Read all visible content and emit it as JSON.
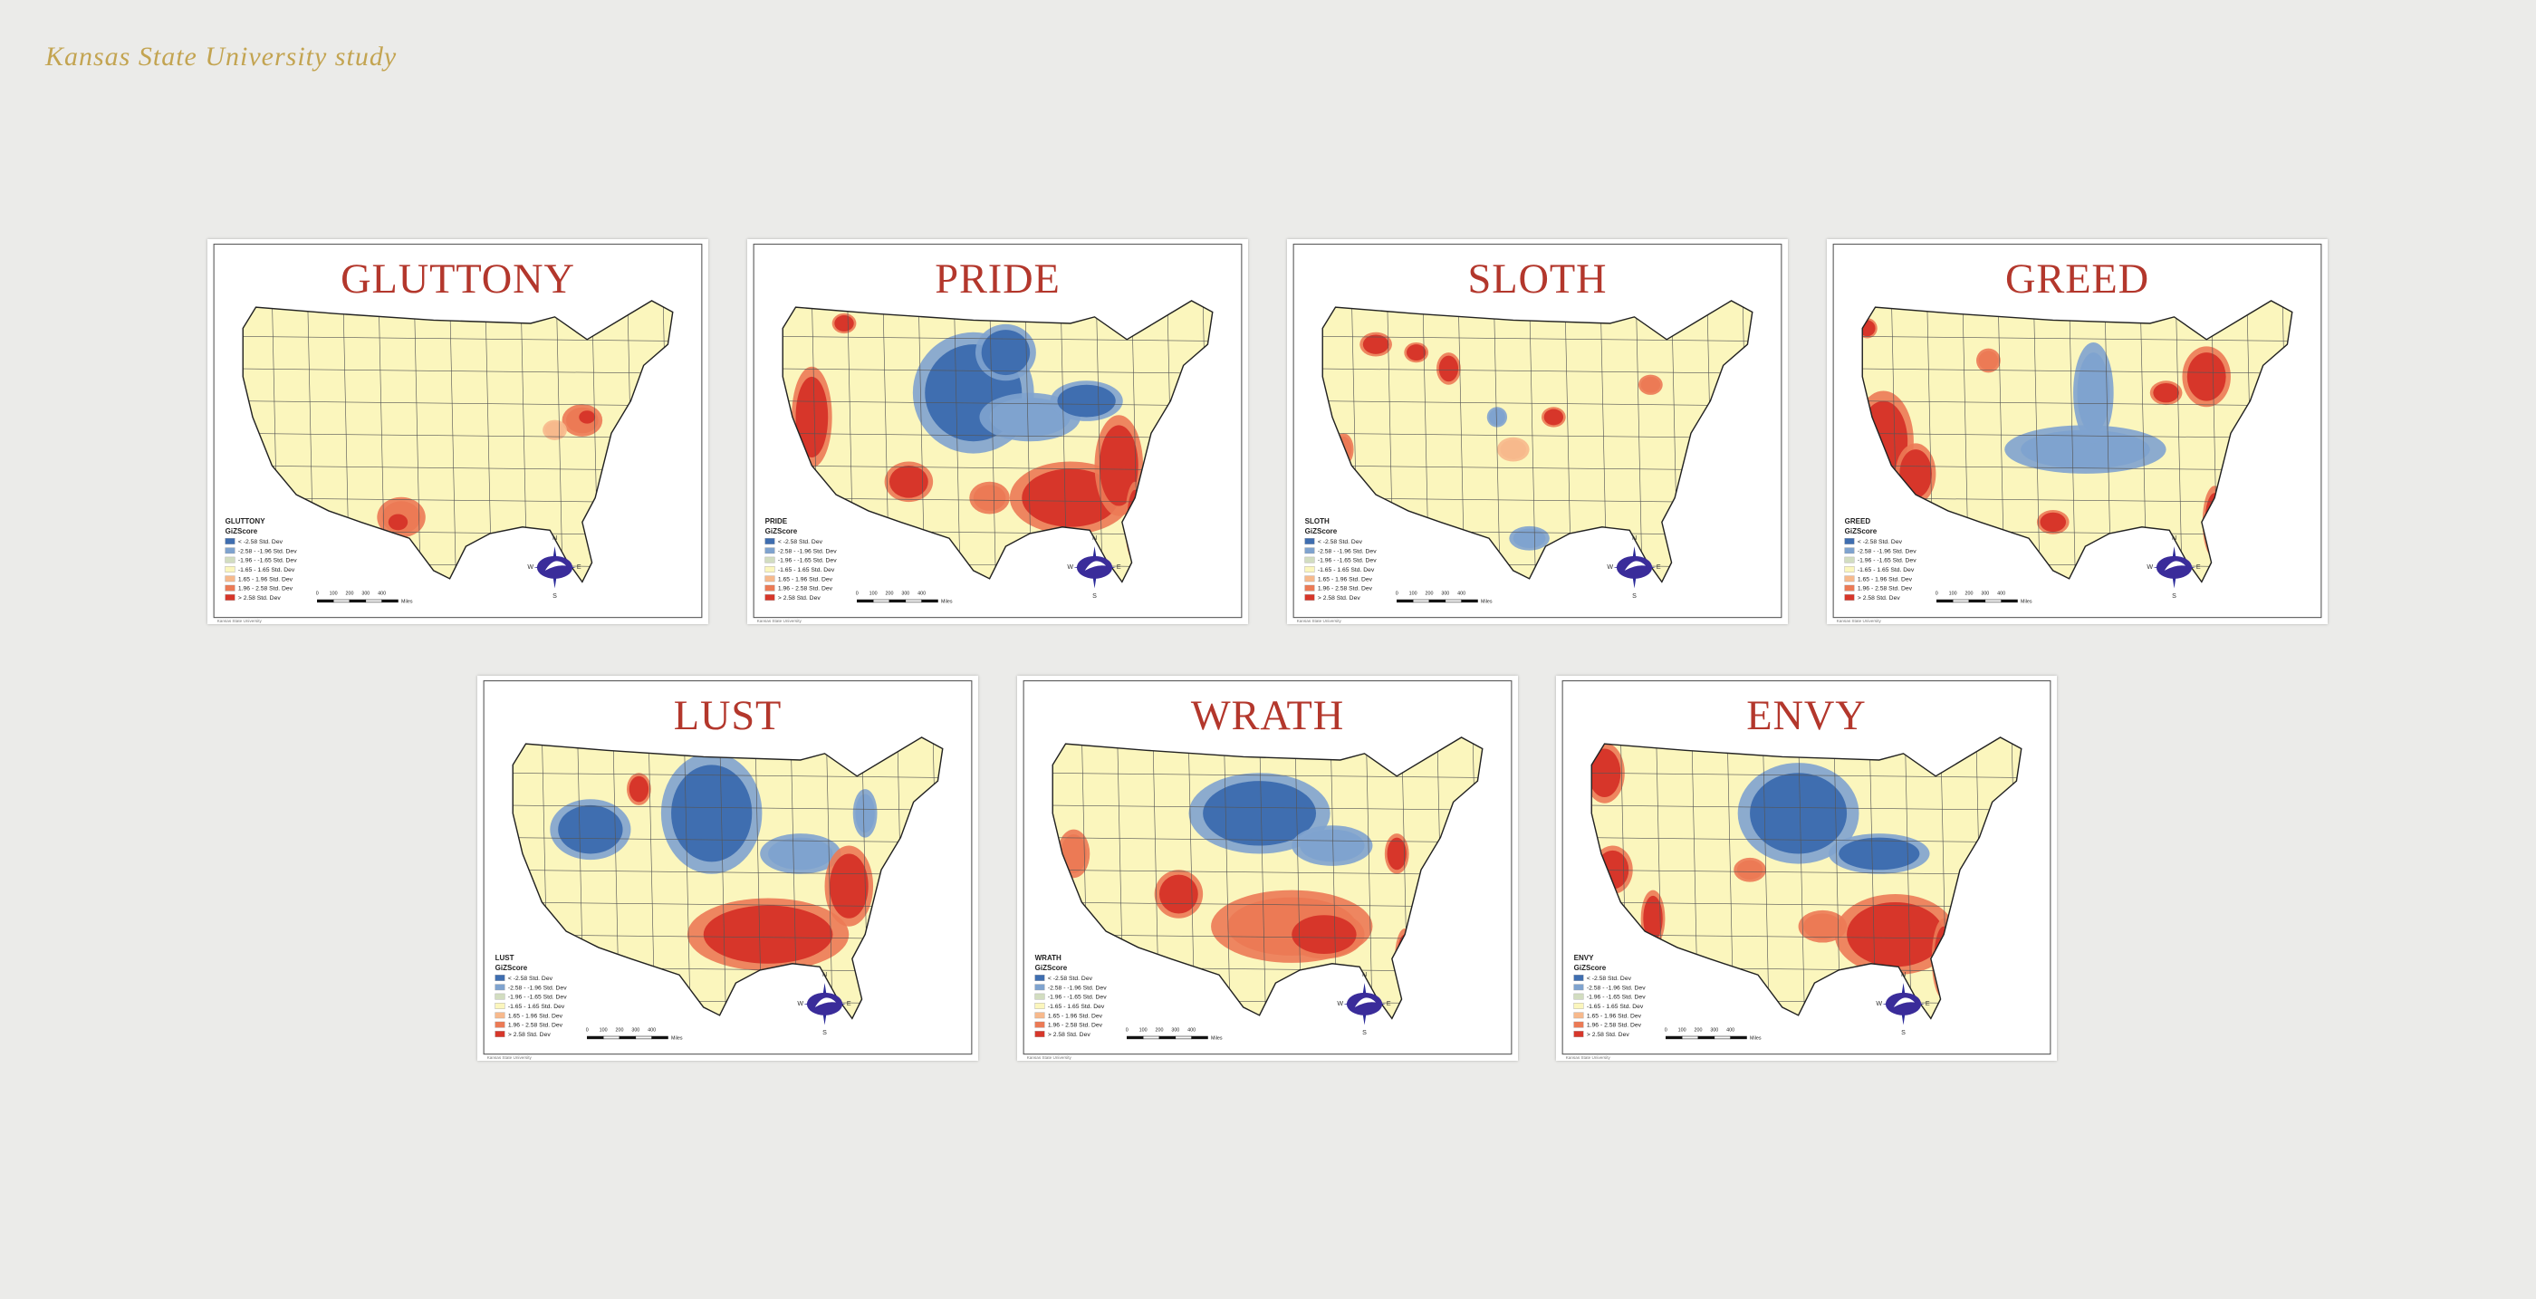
{
  "header": {
    "title": "Kansas State University study"
  },
  "legend": {
    "heading": "GiZScore",
    "items": [
      {
        "label": "< -2.58 Std. Dev",
        "color": "#3f6eb0"
      },
      {
        "label": "-2.58 - -1.96 Std. Dev",
        "color": "#7fa3cf"
      },
      {
        "label": "-1.96 - -1.65 Std. Dev",
        "color": "#d2ddc0"
      },
      {
        "label": "-1.65 - 1.65 Std. Dev",
        "color": "#fbf6bd"
      },
      {
        "label": "1.65 - 1.96 Std. Dev",
        "color": "#f7b98c"
      },
      {
        "label": "1.96 - 2.58 Std. Dev",
        "color": "#ec7a55"
      },
      {
        "label": "> 2.58 Std. Dev",
        "color": "#d7362a"
      }
    ],
    "scale": [
      "0",
      "100",
      "200",
      "300",
      "400"
    ],
    "scale_unit": "Miles",
    "compass": [
      "N",
      "E",
      "S",
      "W"
    ],
    "credit": "Kansas State University"
  },
  "maps": [
    {
      "title": "GLUTTONY"
    },
    {
      "title": "PRIDE"
    },
    {
      "title": "SLOTH"
    },
    {
      "title": "GREED"
    },
    {
      "title": "LUST"
    },
    {
      "title": "WRATH"
    },
    {
      "title": "ENVY"
    }
  ]
}
